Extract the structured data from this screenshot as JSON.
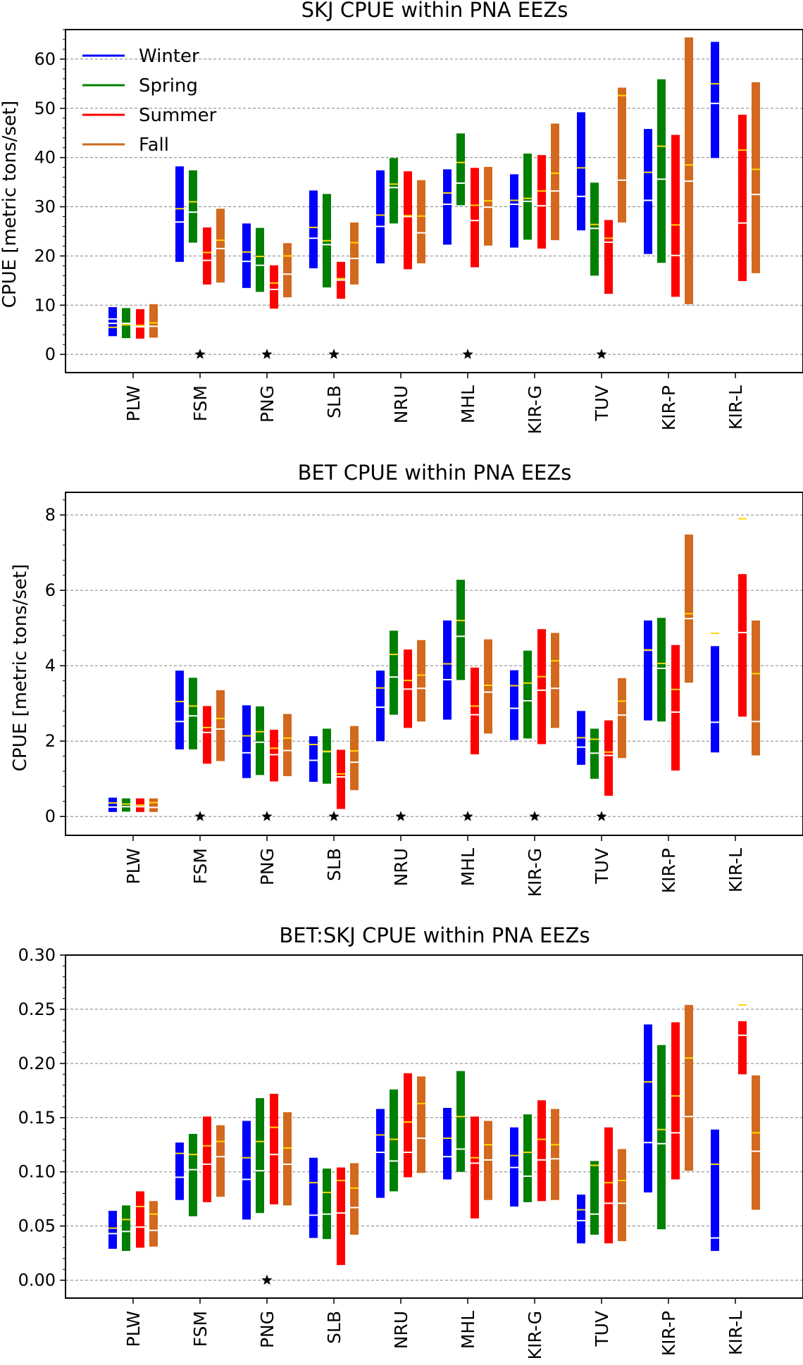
{
  "chart_data": [
    {
      "type": "range-bar",
      "title": "SKJ CPUE within PNA EEZs",
      "ylabel": "CPUE [metric tons/set]",
      "xlabel": "",
      "ylim": [
        -3.7,
        66
      ],
      "yticks": [
        0,
        10,
        20,
        30,
        40,
        50,
        60
      ],
      "ytick_labels": [
        "0",
        "10",
        "20",
        "30",
        "40",
        "50",
        "60"
      ],
      "grid": "horizontal dashed",
      "legend_placement": "top-left",
      "categories": [
        "PLW",
        "FSM",
        "PNG",
        "SLB",
        "NRU",
        "MHL",
        "KIR-G",
        "TUV",
        "KIR-P",
        "KIR-L"
      ],
      "series": [
        {
          "name": "Winter",
          "color": "#0000ff",
          "ranges": [
            [
              3.7,
              9.6
            ],
            [
              18.8,
              38.2
            ],
            [
              13.5,
              26.6
            ],
            [
              17.5,
              33.3
            ],
            [
              18.5,
              37.4
            ],
            [
              22.3,
              37.6
            ],
            [
              21.7,
              36.6
            ],
            [
              25.2,
              49.2
            ],
            [
              20.4,
              45.8
            ],
            [
              39.9,
              63.5
            ]
          ],
          "medians": [
            6.3,
            26.9,
            18.9,
            23.6,
            26.0,
            30.5,
            30.5,
            32.1,
            31.3,
            51.0
          ],
          "means": [
            5.5,
            29.6,
            20.8,
            25.8,
            28.3,
            32.8,
            31.3,
            37.9,
            37.0,
            55.0
          ],
          "extra": [
            7.2,
            null,
            null,
            null,
            null,
            null,
            null,
            null,
            null,
            null
          ]
        },
        {
          "name": "Spring",
          "color": "#008000",
          "ranges": [
            [
              3.3,
              9.4
            ],
            [
              22.7,
              37.4
            ],
            [
              12.7,
              25.7
            ],
            [
              13.6,
              32.6
            ],
            [
              26.6,
              39.9
            ],
            [
              30.3,
              44.9
            ],
            [
              23.3,
              40.8
            ],
            [
              16.0,
              34.9
            ],
            [
              18.6,
              55.9
            ],
            null
          ],
          "medians": [
            6.3,
            28.9,
            18.1,
            22.3,
            33.9,
            34.8,
            31.1,
            25.6,
            35.6,
            null
          ],
          "means": [
            6.0,
            31.0,
            19.9,
            23.1,
            34.6,
            39.0,
            31.7,
            26.4,
            42.3,
            null
          ],
          "extra": [
            null,
            null,
            null,
            null,
            null,
            null,
            null,
            null,
            null,
            null
          ]
        },
        {
          "name": "Summer",
          "color": "#ff0000",
          "ranges": [
            [
              3.2,
              9.2
            ],
            [
              14.2,
              25.8
            ],
            [
              9.3,
              18.1
            ],
            [
              11.3,
              18.8
            ],
            [
              17.3,
              37.2
            ],
            [
              17.7,
              37.9
            ],
            [
              21.5,
              40.5
            ],
            [
              12.3,
              27.3
            ],
            [
              11.7,
              44.6
            ],
            [
              14.9,
              48.7
            ]
          ],
          "medians": [
            5.6,
            19.1,
            13.2,
            15.1,
            28.0,
            27.2,
            30.2,
            22.8,
            20.1,
            26.7
          ],
          "means": [
            5.9,
            20.7,
            14.5,
            15.4,
            28.2,
            30.3,
            33.2,
            23.6,
            26.3,
            41.5
          ],
          "extra": [
            null,
            null,
            null,
            null,
            null,
            null,
            null,
            null,
            null,
            null
          ]
        },
        {
          "name": "Fall",
          "color": "#d2691e",
          "ranges": [
            [
              3.4,
              10.2
            ],
            [
              14.6,
              29.6
            ],
            [
              11.6,
              22.6
            ],
            [
              14.2,
              26.8
            ],
            [
              18.5,
              35.4
            ],
            [
              22.1,
              38.1
            ],
            [
              23.2,
              46.9
            ],
            [
              26.8,
              54.2
            ],
            [
              10.2,
              64.4
            ],
            [
              16.5,
              55.3
            ]
          ],
          "medians": [
            5.7,
            21.5,
            16.3,
            19.5,
            24.7,
            29.9,
            33.2,
            35.4,
            35.2,
            32.5
          ],
          "means": [
            6.4,
            23.2,
            20.0,
            22.7,
            28.1,
            31.2,
            36.8,
            52.6,
            38.5,
            37.6
          ],
          "extra": [
            null,
            null,
            null,
            null,
            null,
            null,
            null,
            null,
            null,
            null
          ]
        }
      ],
      "star_categories": [
        "FSM",
        "PNG",
        "SLB",
        "MHL",
        "TUV"
      ]
    },
    {
      "type": "range-bar",
      "title": "BET CPUE within PNA EEZs",
      "ylabel": "CPUE [metric tons/set]",
      "xlabel": "",
      "ylim": [
        -0.5,
        8.6
      ],
      "yticks": [
        0,
        2,
        4,
        6,
        8
      ],
      "ytick_labels": [
        "0",
        "2",
        "4",
        "6",
        "8"
      ],
      "grid": "horizontal dashed",
      "categories": [
        "PLW",
        "FSM",
        "PNG",
        "SLB",
        "NRU",
        "MHL",
        "KIR-G",
        "TUV",
        "KIR-P",
        "KIR-L"
      ],
      "series": [
        {
          "name": "Winter",
          "color": "#0000ff",
          "ranges": [
            [
              0.12,
              0.5
            ],
            [
              1.78,
              3.87
            ],
            [
              1.02,
              2.95
            ],
            [
              0.92,
              2.13
            ],
            [
              2.0,
              3.87
            ],
            [
              2.57,
              5.2
            ],
            [
              2.03,
              3.88
            ],
            [
              1.37,
              2.8
            ],
            [
              2.55,
              5.2
            ],
            [
              1.7,
              4.52
            ]
          ],
          "medians": [
            0.25,
            2.52,
            1.69,
            1.49,
            2.9,
            3.63,
            2.87,
            1.84,
            4.41,
            2.5
          ],
          "means": [
            0.36,
            3.05,
            2.14,
            1.91,
            3.41,
            4.05,
            3.47,
            2.09,
            4.42,
            4.86
          ],
          "extra": [
            null,
            null,
            null,
            null,
            null,
            null,
            null,
            null,
            5.53,
            null
          ]
        },
        {
          "name": "Spring",
          "color": "#008000",
          "ranges": [
            [
              0.13,
              0.48
            ],
            [
              1.78,
              3.68
            ],
            [
              1.1,
              2.92
            ],
            [
              0.87,
              2.33
            ],
            [
              2.7,
              4.93
            ],
            [
              3.62,
              6.28
            ],
            [
              2.07,
              4.4
            ],
            [
              1.0,
              2.33
            ],
            [
              2.52,
              5.27
            ],
            null
          ],
          "medians": [
            0.26,
            2.67,
            1.97,
            1.72,
            3.7,
            4.78,
            3.07,
            1.68,
            3.93,
            null
          ],
          "means": [
            0.33,
            2.93,
            2.25,
            1.73,
            4.3,
            5.2,
            3.54,
            2.05,
            4.06,
            null
          ],
          "extra": [
            null,
            null,
            null,
            null,
            null,
            null,
            null,
            null,
            null,
            null
          ]
        },
        {
          "name": "Summer",
          "color": "#ff0000",
          "ranges": [
            [
              0.12,
              0.48
            ],
            [
              1.4,
              2.93
            ],
            [
              0.93,
              2.3
            ],
            [
              0.2,
              1.77
            ],
            [
              2.35,
              4.43
            ],
            [
              1.65,
              3.95
            ],
            [
              1.92,
              4.97
            ],
            [
              0.55,
              2.55
            ],
            [
              1.22,
              4.55
            ],
            [
              2.65,
              6.43
            ]
          ],
          "medians": [
            0.26,
            2.23,
            1.64,
            1.05,
            3.38,
            2.7,
            3.35,
            1.62,
            2.77,
            4.88
          ],
          "means": [
            0.3,
            2.36,
            1.81,
            1.13,
            3.61,
            2.93,
            3.71,
            1.71,
            3.37,
            7.9
          ],
          "extra": [
            null,
            null,
            null,
            null,
            null,
            null,
            null,
            null,
            null,
            null
          ]
        },
        {
          "name": "Fall",
          "color": "#d2691e",
          "ranges": [
            [
              0.12,
              0.48
            ],
            [
              1.47,
              3.35
            ],
            [
              1.07,
              2.72
            ],
            [
              0.7,
              2.4
            ],
            [
              2.52,
              4.68
            ],
            [
              2.2,
              4.7
            ],
            [
              2.35,
              4.87
            ],
            [
              1.55,
              3.67
            ],
            [
              3.55,
              7.48
            ],
            [
              1.62,
              5.2
            ]
          ],
          "medians": [
            0.24,
            2.32,
            1.75,
            1.44,
            3.4,
            3.3,
            3.4,
            2.69,
            5.25,
            2.52
          ],
          "means": [
            0.37,
            2.6,
            2.08,
            1.74,
            3.75,
            3.48,
            4.13,
            3.06,
            5.38,
            3.79
          ],
          "extra": [
            null,
            null,
            null,
            null,
            null,
            null,
            null,
            null,
            null,
            null
          ]
        }
      ],
      "star_categories": [
        "FSM",
        "PNG",
        "SLB",
        "NRU",
        "MHL",
        "KIR-G",
        "TUV"
      ]
    },
    {
      "type": "range-bar",
      "title": "BET:SKJ CPUE within PNA EEZs",
      "ylabel": "",
      "xlabel": "",
      "ylim": [
        -0.0165,
        0.3
      ],
      "yticks": [
        0.0,
        0.05,
        0.1,
        0.15,
        0.2,
        0.25,
        0.3
      ],
      "ytick_labels": [
        "0.00",
        "0.05",
        "0.10",
        "0.15",
        "0.20",
        "0.25",
        "0.30"
      ],
      "grid": "horizontal dashed",
      "categories": [
        "PLW",
        "FSM",
        "PNG",
        "SLB",
        "NRU",
        "MHL",
        "KIR-G",
        "TUV",
        "KIR-P",
        "KIR-L"
      ],
      "series": [
        {
          "name": "Winter",
          "color": "#0000ff",
          "ranges": [
            [
              0.029,
              0.064
            ],
            [
              0.074,
              0.127
            ],
            [
              0.056,
              0.147
            ],
            [
              0.039,
              0.113
            ],
            [
              0.076,
              0.158
            ],
            [
              0.093,
              0.159
            ],
            [
              0.068,
              0.141
            ],
            [
              0.034,
              0.079
            ],
            [
              0.081,
              0.236
            ],
            [
              0.027,
              0.139
            ]
          ],
          "medians": [
            0.043,
            0.095,
            0.093,
            0.06,
            0.118,
            0.114,
            0.104,
            0.055,
            0.127,
            0.039
          ],
          "means": [
            0.048,
            0.117,
            0.113,
            0.09,
            0.134,
            0.131,
            0.115,
            0.065,
            0.183,
            0.107
          ],
          "extra": [
            null,
            null,
            null,
            null,
            null,
            null,
            null,
            null,
            null,
            null
          ]
        },
        {
          "name": "Spring",
          "color": "#008000",
          "ranges": [
            [
              0.027,
              0.069
            ],
            [
              0.059,
              0.135
            ],
            [
              0.062,
              0.168
            ],
            [
              0.038,
              0.103
            ],
            [
              0.082,
              0.176
            ],
            [
              0.1,
              0.193
            ],
            [
              0.072,
              0.153
            ],
            [
              0.042,
              0.11
            ],
            [
              0.047,
              0.217
            ],
            null
          ],
          "medians": [
            0.045,
            0.102,
            0.101,
            0.061,
            0.11,
            0.121,
            0.096,
            0.061,
            0.126,
            null
          ],
          "means": [
            0.056,
            0.116,
            0.128,
            0.081,
            0.13,
            0.151,
            0.118,
            0.106,
            0.139,
            null
          ],
          "extra": [
            null,
            null,
            null,
            null,
            null,
            null,
            null,
            null,
            null,
            null
          ]
        },
        {
          "name": "Summer",
          "color": "#ff0000",
          "ranges": [
            [
              0.03,
              0.082
            ],
            [
              0.072,
              0.151
            ],
            [
              0.07,
              0.172
            ],
            [
              0.014,
              0.104
            ],
            [
              0.095,
              0.191
            ],
            [
              0.057,
              0.151
            ],
            [
              0.073,
              0.166
            ],
            [
              0.034,
              0.141
            ],
            [
              0.093,
              0.238
            ],
            [
              0.19,
              0.239
            ]
          ],
          "medians": [
            0.049,
            0.107,
            0.116,
            0.062,
            0.118,
            0.108,
            0.111,
            0.071,
            0.136,
            0.226
          ],
          "means": [
            0.068,
            0.124,
            0.141,
            0.092,
            0.146,
            0.113,
            0.13,
            0.09,
            0.17,
            0.254
          ],
          "extra": [
            null,
            null,
            null,
            null,
            null,
            null,
            null,
            null,
            null,
            null
          ]
        },
        {
          "name": "Fall",
          "color": "#d2691e",
          "ranges": [
            [
              0.031,
              0.073
            ],
            [
              0.077,
              0.143
            ],
            [
              0.069,
              0.155
            ],
            [
              0.042,
              0.108
            ],
            [
              0.099,
              0.188
            ],
            [
              0.074,
              0.147
            ],
            [
              0.074,
              0.158
            ],
            [
              0.036,
              0.121
            ],
            [
              0.101,
              0.254
            ],
            [
              0.065,
              0.189
            ]
          ],
          "medians": [
            0.046,
            0.114,
            0.107,
            0.067,
            0.131,
            0.111,
            0.112,
            0.071,
            0.151,
            0.119
          ],
          "means": [
            0.061,
            0.128,
            0.122,
            0.085,
            0.163,
            0.125,
            0.125,
            0.092,
            0.205,
            0.136
          ],
          "extra": [
            null,
            null,
            null,
            null,
            null,
            null,
            null,
            null,
            null,
            null
          ]
        }
      ],
      "star_categories": [
        "PNG"
      ]
    }
  ],
  "colors": {
    "median_line": "#ffffff",
    "mean_line": "#ffd700",
    "grid": "#808080"
  }
}
